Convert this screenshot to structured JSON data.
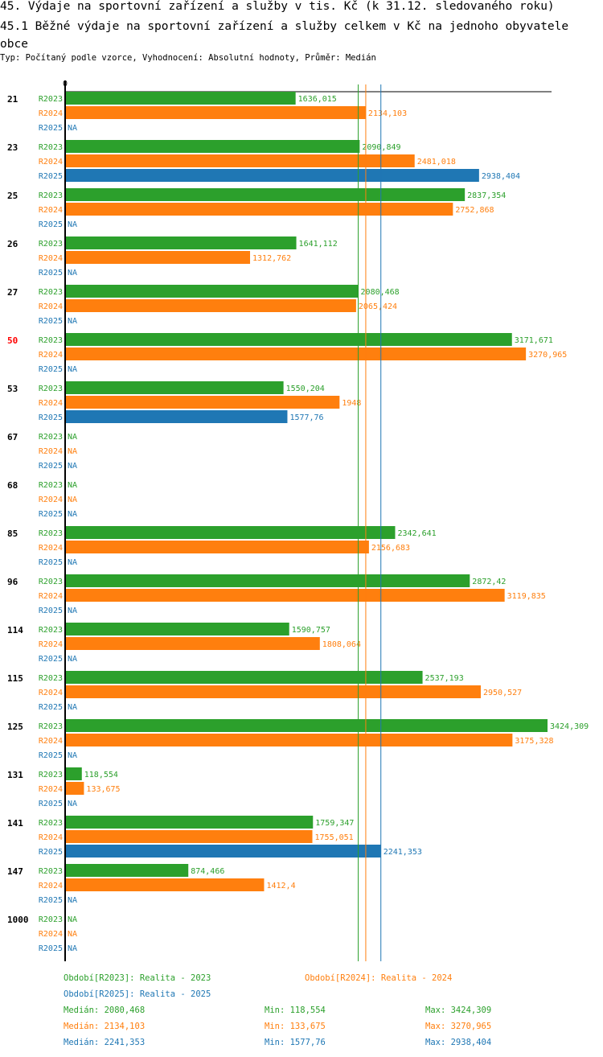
{
  "title": "45. Výdaje na sportovní zařízení a služby v tis. Kč (k 31.12. sledovaného roku)",
  "subtitle": "45.1 Běžné výdaje na sportovní zařízení a služby celkem v Kč na jednoho obyvatele obce",
  "info": "Typ: Počítaný podle vzorce, Vyhodnocení: Absolutní hodnoty, Průměr: Medián",
  "chart_data": {
    "type": "bar",
    "orientation": "horizontal",
    "xlim": [
      0,
      3424.309
    ],
    "xtick_label": "0",
    "series": [
      {
        "name": "R2023",
        "color": "#2ca02c"
      },
      {
        "name": "R2024",
        "color": "#ff7f0e"
      },
      {
        "name": "R2025",
        "color": "#1f77b4"
      }
    ],
    "categories": [
      {
        "label": "21",
        "values": [
          1636.015,
          2134.103,
          null
        ]
      },
      {
        "label": "23",
        "values": [
          2090.849,
          2481.018,
          2938.404
        ]
      },
      {
        "label": "25",
        "values": [
          2837.354,
          2752.868,
          null
        ]
      },
      {
        "label": "26",
        "values": [
          1641.112,
          1312.762,
          null
        ]
      },
      {
        "label": "27",
        "values": [
          2080.468,
          2065.424,
          null
        ]
      },
      {
        "label": "50",
        "values": [
          3171.671,
          3270.965,
          null
        ],
        "highlight": "#ff0000"
      },
      {
        "label": "53",
        "values": [
          1550.204,
          1948,
          1577.76
        ]
      },
      {
        "label": "67",
        "values": [
          null,
          null,
          null
        ]
      },
      {
        "label": "68",
        "values": [
          null,
          null,
          null
        ]
      },
      {
        "label": "85",
        "values": [
          2342.641,
          2156.683,
          null
        ]
      },
      {
        "label": "96",
        "values": [
          2872.42,
          3119.835,
          null
        ]
      },
      {
        "label": "114",
        "values": [
          1590.757,
          1808.064,
          null
        ]
      },
      {
        "label": "115",
        "values": [
          2537.193,
          2950.527,
          null
        ]
      },
      {
        "label": "125",
        "values": [
          3424.309,
          3175.328,
          null
        ]
      },
      {
        "label": "131",
        "values": [
          118.554,
          133.675,
          null
        ]
      },
      {
        "label": "141",
        "values": [
          1759.347,
          1755.051,
          2241.353
        ]
      },
      {
        "label": "147",
        "values": [
          874.466,
          1412.4,
          null
        ]
      },
      {
        "label": "1000",
        "values": [
          null,
          null,
          null
        ]
      }
    ],
    "na_label": "NA",
    "medians": [
      2080.468,
      2134.103,
      2241.353
    ]
  },
  "legend": {
    "periods": [
      "Období[R2023]: Realita - 2023",
      "Období[R2024]: Realita - 2024",
      "Období[R2025]: Realita - 2025"
    ],
    "stats": [
      {
        "median": "Medián: 2080,468",
        "min": "Min: 118,554",
        "max": "Max: 3424,309"
      },
      {
        "median": "Medián: 2134,103",
        "min": "Min: 133,675",
        "max": "Max: 3270,965"
      },
      {
        "median": "Medián: 2241,353",
        "min": "Min: 1577,76",
        "max": "Max: 2938,404"
      }
    ]
  }
}
